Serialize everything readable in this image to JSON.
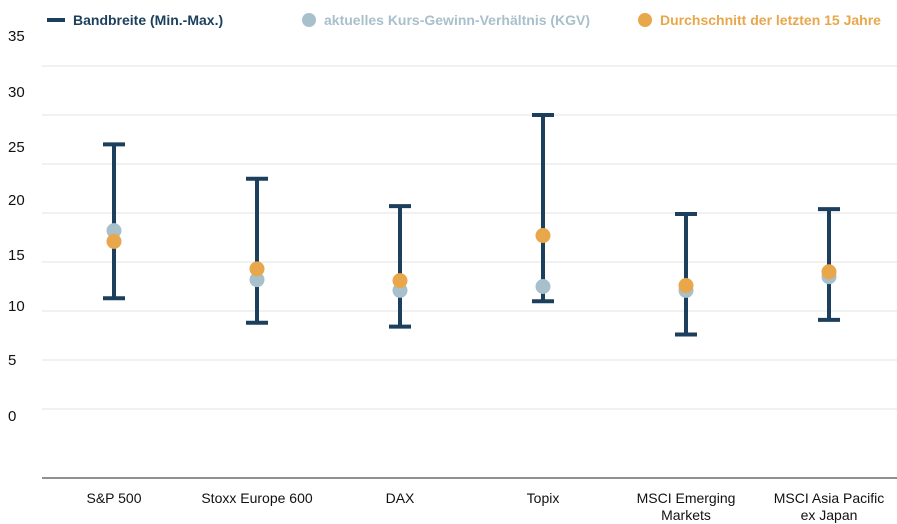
{
  "legend": {
    "range_label": "Bandbreite (Min.-Max.)",
    "current_label": "aktuelles Kurs-Gewinn-Verhältnis (KGV)",
    "average_label": "Durchschnitt der letzten 15 Jahre"
  },
  "colors": {
    "range": "#1b3f5c",
    "current": "#a8bfcc",
    "average": "#e8a74a",
    "grid": "#e3e3e3",
    "axis": "#222222"
  },
  "chart_data": {
    "type": "scatter",
    "title": "",
    "xlabel": "",
    "ylabel": "",
    "ylim": [
      -5,
      35
    ],
    "yticks": [
      "35",
      "30",
      "25",
      "20",
      "15",
      "10",
      "5",
      "0"
    ],
    "categories": [
      "S&P 500",
      "Stoxx Europe 600",
      "DAX",
      "Topix",
      "MSCI Emerging Markets",
      "MSCI Asia Pacific ex Japan"
    ],
    "category_lines": [
      [
        "S&P 500"
      ],
      [
        "Stoxx Europe 600"
      ],
      [
        "DAX"
      ],
      [
        "Topix"
      ],
      [
        "MSCI Emerging",
        "Markets"
      ],
      [
        "MSCI Asia Pacific",
        "ex Japan"
      ]
    ],
    "series": [
      {
        "name": "Bandbreite (Min.-Max.)",
        "min": [
          11.3,
          8.8,
          8.4,
          11.0,
          7.6,
          9.1
        ],
        "max": [
          27.0,
          23.5,
          20.7,
          30.0,
          19.9,
          20.4
        ]
      },
      {
        "name": "aktuelles Kurs-Gewinn-Verhältnis (KGV)",
        "values": [
          18.2,
          13.2,
          12.1,
          12.5,
          12.1,
          13.5
        ]
      },
      {
        "name": "Durchschnitt der letzten 15 Jahre",
        "values": [
          17.1,
          14.3,
          13.1,
          17.7,
          12.6,
          14.0
        ]
      }
    ],
    "grid": true,
    "legend_position": "top"
  }
}
